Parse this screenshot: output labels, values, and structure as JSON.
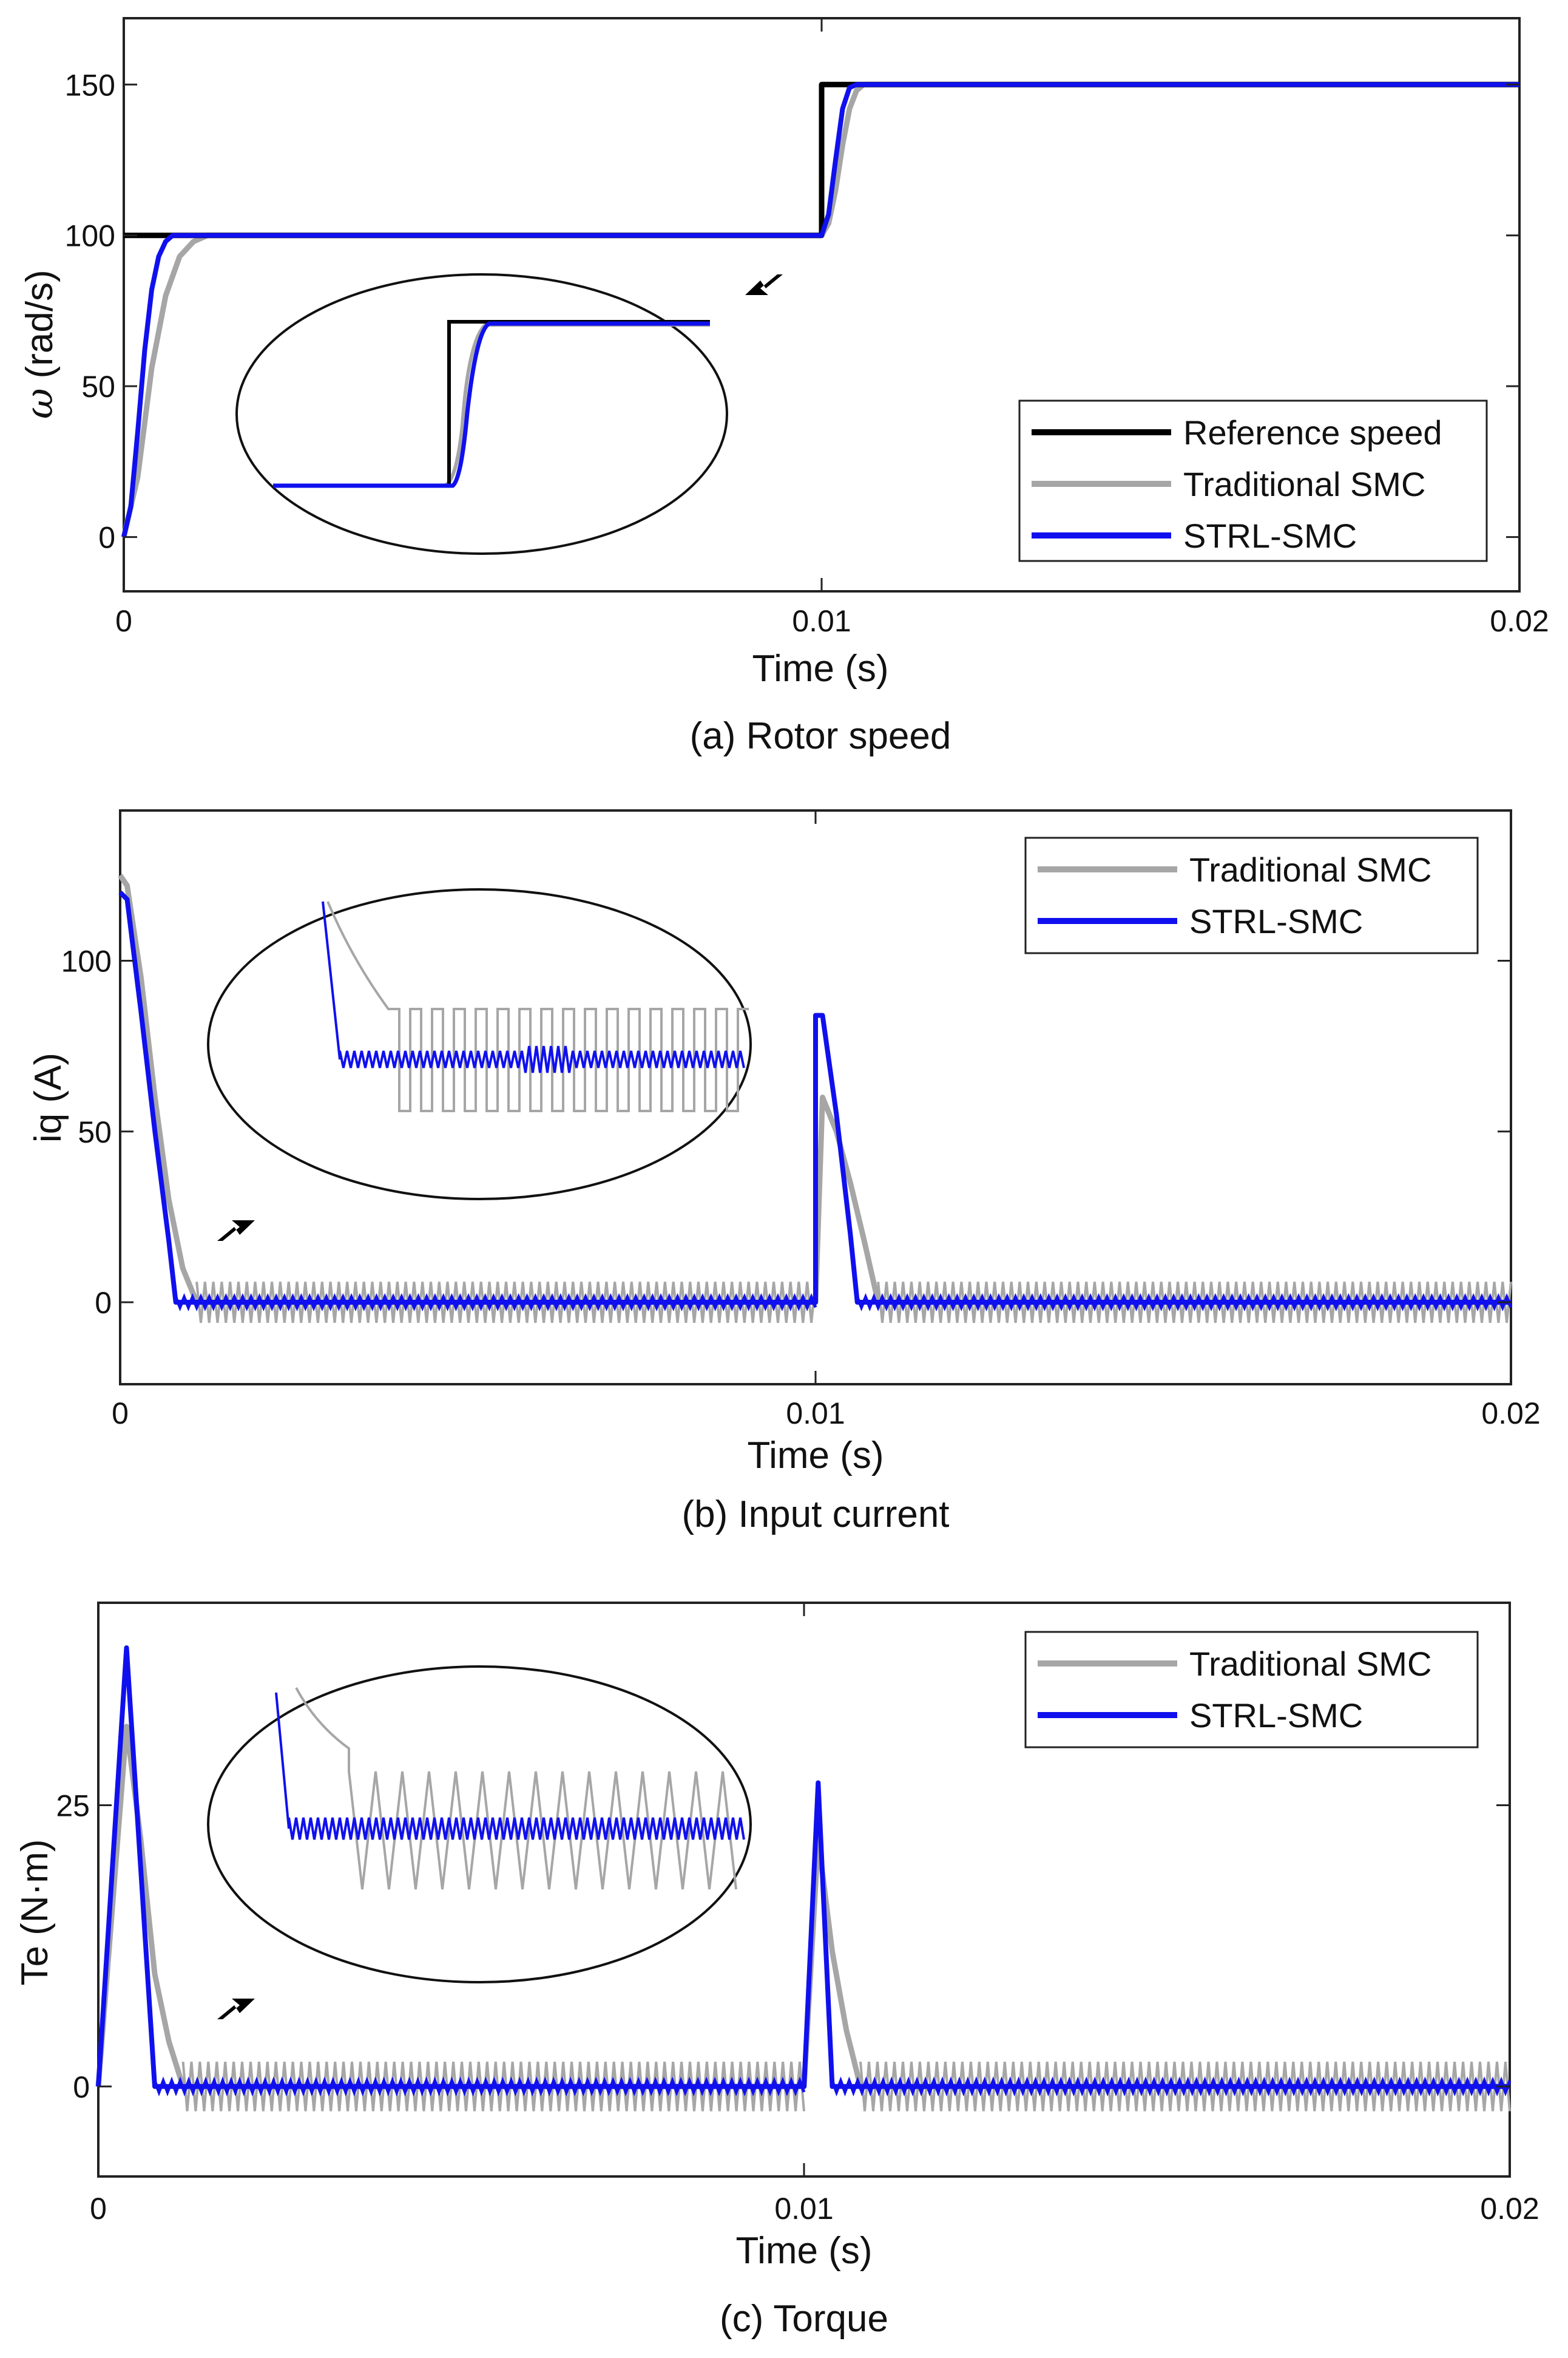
{
  "colors": {
    "reference": "#000000",
    "traditional": "#a6a6a6",
    "strl": "#1010ee",
    "axes": "#222222"
  },
  "icons": [
    "arrow-icon"
  ],
  "chart_data": [
    {
      "type": "line",
      "caption": "(a) Rotor speed",
      "xlabel": "Time (s)",
      "ylabel_symbol": "ω",
      "ylabel": "(rad/s)",
      "xlim": [
        0,
        0.02
      ],
      "ylim": [
        -18,
        172
      ],
      "xticks": [
        0,
        0.01,
        0.02
      ],
      "xtick_labels": [
        "0",
        "0.01",
        "0.02"
      ],
      "yticks": [
        0,
        50,
        100,
        150
      ],
      "ytick_labels": [
        "0",
        "50",
        "100",
        "150"
      ],
      "legend": {
        "position": "bottom-right",
        "entries": [
          "Reference speed",
          "Traditional SMC",
          "STRL-SMC"
        ]
      },
      "series": [
        {
          "name": "Reference speed",
          "x": [
            0,
            0.01,
            0.01,
            0.02
          ],
          "y": [
            100,
            100,
            150,
            150
          ]
        },
        {
          "name": "Traditional SMC",
          "x": [
            0,
            0.0002,
            0.0004,
            0.0006,
            0.0008,
            0.001,
            0.0012,
            0.01,
            0.0101,
            0.0102,
            0.0103,
            0.0104,
            0.0105,
            0.0106,
            0.02
          ],
          "y": [
            0,
            20,
            56,
            80,
            93,
            98,
            100,
            100,
            104,
            115,
            130,
            142,
            148,
            150,
            150
          ]
        },
        {
          "name": "STRL-SMC",
          "x": [
            0,
            0.0001,
            0.0002,
            0.0003,
            0.0004,
            0.0005,
            0.0006,
            0.0007,
            0.0008,
            0.01,
            0.0101,
            0.0102,
            0.0103,
            0.0104,
            0.0105,
            0.02
          ],
          "y": [
            0,
            10,
            35,
            62,
            82,
            93,
            98,
            100,
            100,
            100,
            107,
            125,
            142,
            149,
            150,
            150
          ]
        }
      ],
      "inset": {
        "description": "zoom of speed step near t = 0.01 s"
      }
    },
    {
      "type": "line",
      "caption": "(b) Input current",
      "xlabel": "Time (s)",
      "ylabel": "iq (A)",
      "xlim": [
        0,
        0.02
      ],
      "ylim": [
        -24,
        144
      ],
      "xticks": [
        0,
        0.01,
        0.02
      ],
      "xtick_labels": [
        "0",
        "0.01",
        "0.02"
      ],
      "yticks": [
        0,
        50,
        100
      ],
      "ytick_labels": [
        "0",
        "50",
        "100"
      ],
      "legend": {
        "position": "top-right",
        "entries": [
          "Traditional SMC",
          "STRL-SMC"
        ]
      },
      "series": [
        {
          "name": "Traditional SMC",
          "ripple_amplitude": 6,
          "x": [
            0,
            0.0001,
            0.0003,
            0.0005,
            0.0007,
            0.0009,
            0.0011,
            0.01,
            0.0101,
            0.0103,
            0.0105,
            0.0107,
            0.0109,
            0.02
          ],
          "y": [
            125,
            122,
            95,
            60,
            30,
            10,
            0,
            0,
            60,
            50,
            35,
            18,
            0,
            0
          ]
        },
        {
          "name": "STRL-SMC",
          "ripple_amplitude": 1.5,
          "x": [
            0,
            0.0001,
            0.0003,
            0.0005,
            0.0007,
            0.0008,
            0.01,
            0.01,
            0.0101,
            0.0103,
            0.0105,
            0.0106,
            0.02
          ],
          "y": [
            120,
            118,
            85,
            50,
            18,
            0,
            0,
            84,
            84,
            55,
            20,
            0,
            0
          ]
        }
      ],
      "inset": {
        "description": "zoom of steady-state current ripple"
      }
    },
    {
      "type": "line",
      "caption": "(c) Torque",
      "xlabel": "Time (s)",
      "ylabel": "Te (N·m)",
      "xlim": [
        0,
        0.02
      ],
      "ylim": [
        -8,
        43
      ],
      "xticks": [
        0,
        0.01,
        0.02
      ],
      "xtick_labels": [
        "0",
        "0.01",
        "0.02"
      ],
      "yticks": [
        0,
        25
      ],
      "ytick_labels": [
        "0",
        "25"
      ],
      "legend": {
        "position": "top-right",
        "entries": [
          "Traditional SMC",
          "STRL-SMC"
        ]
      },
      "series": [
        {
          "name": "Traditional SMC",
          "ripple_amplitude": 2.2,
          "x": [
            0,
            0.0004,
            0.0006,
            0.0008,
            0.001,
            0.0012,
            0.01,
            0.0102,
            0.0104,
            0.0106,
            0.0108,
            0.02
          ],
          "y": [
            0,
            32,
            22,
            10,
            4,
            0,
            0,
            22,
            12,
            5,
            0,
            0
          ]
        },
        {
          "name": "STRL-SMC",
          "ripple_amplitude": 0.5,
          "x": [
            0,
            0.0004,
            0.0008,
            0.01,
            0.0102,
            0.0104,
            0.02
          ],
          "y": [
            0,
            39,
            0,
            0,
            27,
            0,
            0
          ]
        }
      ],
      "inset": {
        "description": "zoom of steady-state torque ripple"
      }
    }
  ]
}
